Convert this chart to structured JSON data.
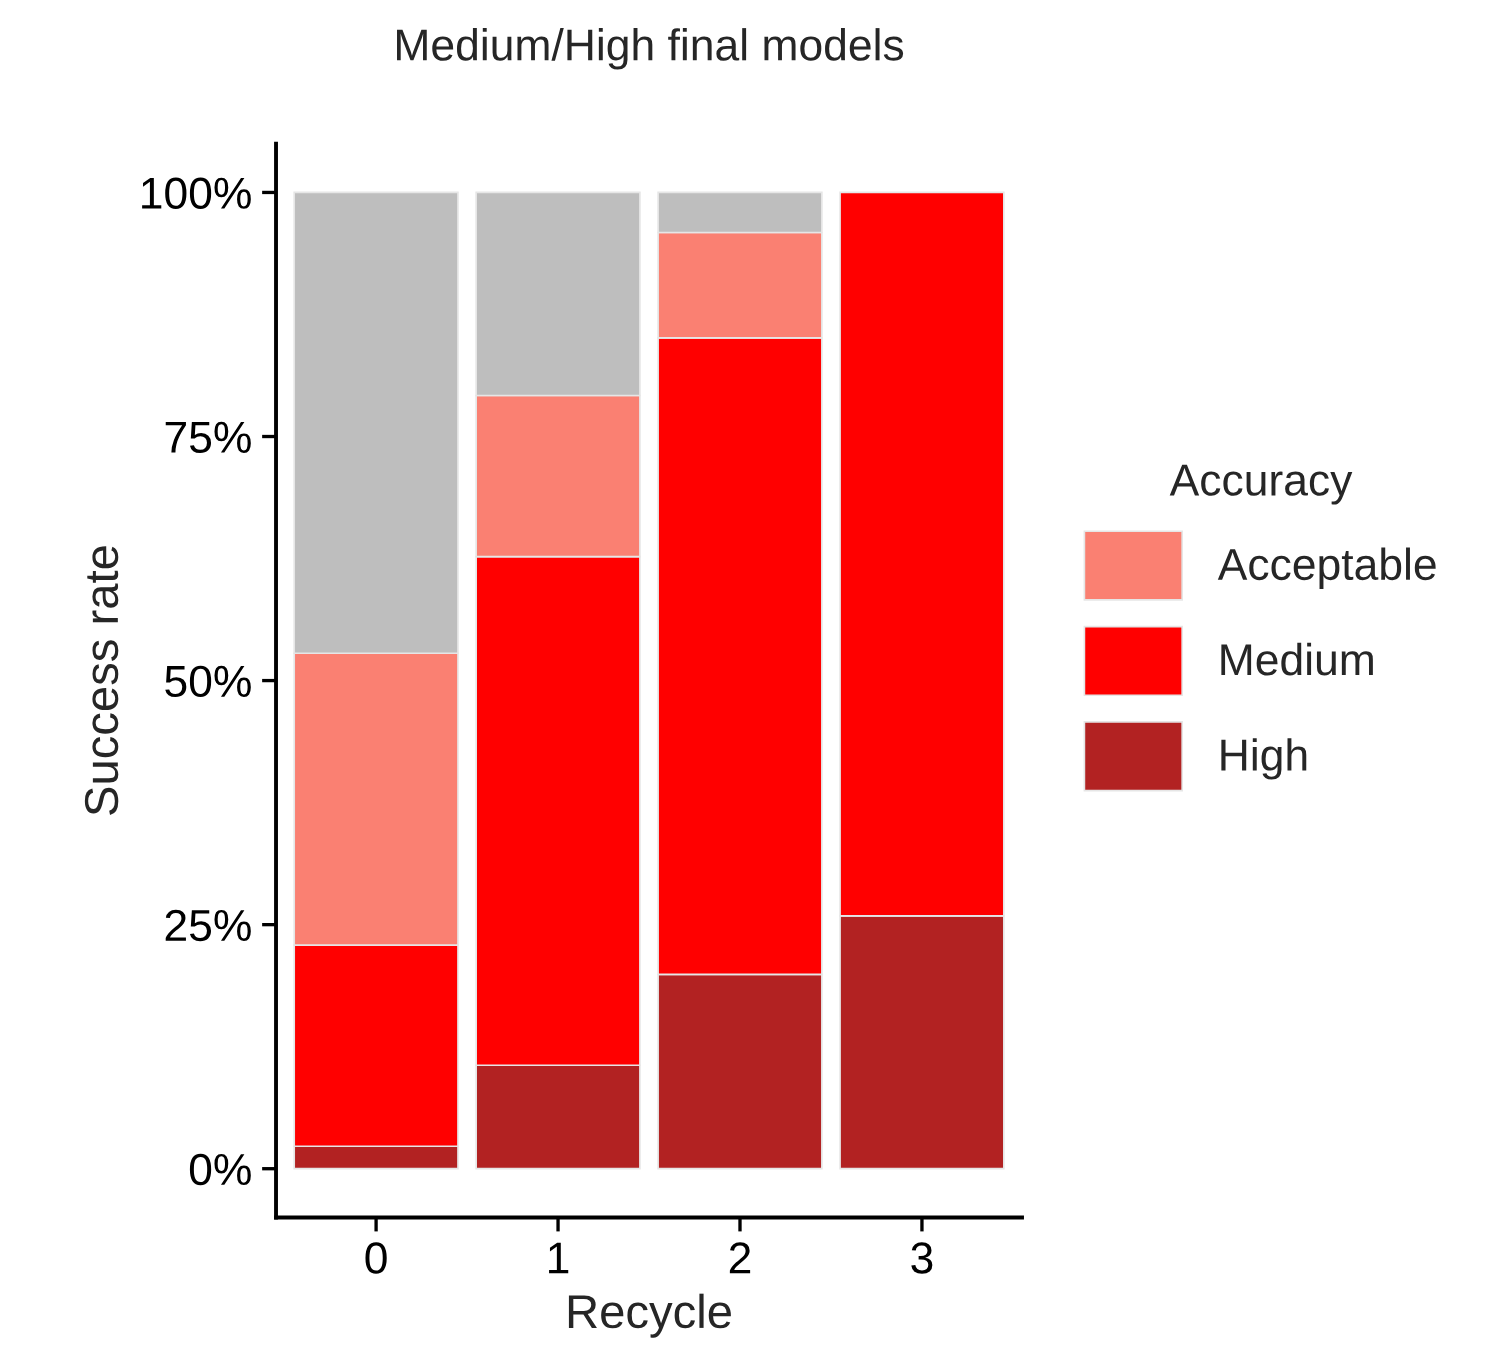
{
  "chart_data": {
    "type": "bar",
    "title": "Medium/High final models",
    "xlabel": "Recycle",
    "ylabel": "Success rate",
    "legend_title": "Accuracy",
    "categories": [
      "0",
      "1",
      "2",
      "3"
    ],
    "stacked": true,
    "series": [
      {
        "name": "High",
        "color": "#b22222",
        "values": [
          2.3,
          10.6,
          19.9,
          25.9
        ]
      },
      {
        "name": "Medium",
        "color": "#ff0000",
        "values": [
          20.6,
          52.1,
          65.2,
          74.1
        ]
      },
      {
        "name": "Acceptable",
        "color": "#fa8072",
        "values": [
          29.9,
          16.5,
          10.8,
          0
        ]
      },
      {
        "color": "#bebebe",
        "values": [
          47.2,
          20.8,
          4.1,
          0
        ]
      }
    ],
    "ylim": [
      -5,
      105
    ],
    "yticks": [
      {
        "value": 0,
        "label": "0%"
      },
      {
        "value": 25,
        "label": "25%"
      },
      {
        "value": 50,
        "label": "50%"
      },
      {
        "value": 75,
        "label": "75%"
      },
      {
        "value": 100,
        "label": "100%"
      }
    ],
    "grid": false,
    "legend": "right"
  }
}
